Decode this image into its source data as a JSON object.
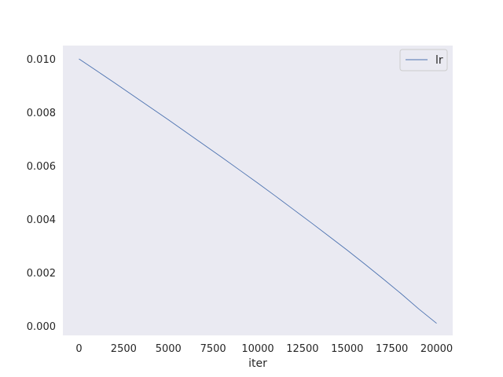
{
  "chart_data": {
    "type": "line",
    "title": "",
    "xlabel": "iter",
    "ylabel": "",
    "xlim": [
      -900,
      20900
    ],
    "ylim": [
      -0.00035,
      0.0105
    ],
    "xticks": [
      0,
      2500,
      5000,
      7500,
      10000,
      12500,
      15000,
      17500,
      20000
    ],
    "xtick_labels": [
      "0",
      "2500",
      "5000",
      "7500",
      "10000",
      "12500",
      "15000",
      "17500",
      "20000"
    ],
    "yticks": [
      0.0,
      0.002,
      0.004,
      0.006,
      0.008,
      0.01
    ],
    "ytick_labels": [
      "0.000",
      "0.002",
      "0.004",
      "0.006",
      "0.008",
      "0.010"
    ],
    "grid": false,
    "legend_position": "top-right",
    "background_color": "#eaeaf2",
    "series": [
      {
        "name": "lr",
        "color": "#4c72b0",
        "x": [
          0,
          1000,
          2000,
          3000,
          4000,
          5000,
          6000,
          7000,
          8000,
          9000,
          10000,
          11000,
          12000,
          13000,
          14000,
          15000,
          16000,
          17000,
          18000,
          19000,
          20000
        ],
        "y": [
          0.01,
          0.00955,
          0.0091,
          0.00864,
          0.00818,
          0.00772,
          0.00725,
          0.00678,
          0.00631,
          0.00583,
          0.00535,
          0.00486,
          0.00436,
          0.00386,
          0.00335,
          0.00284,
          0.00231,
          0.00177,
          0.00122,
          0.00064,
          0.0001
        ]
      }
    ]
  }
}
